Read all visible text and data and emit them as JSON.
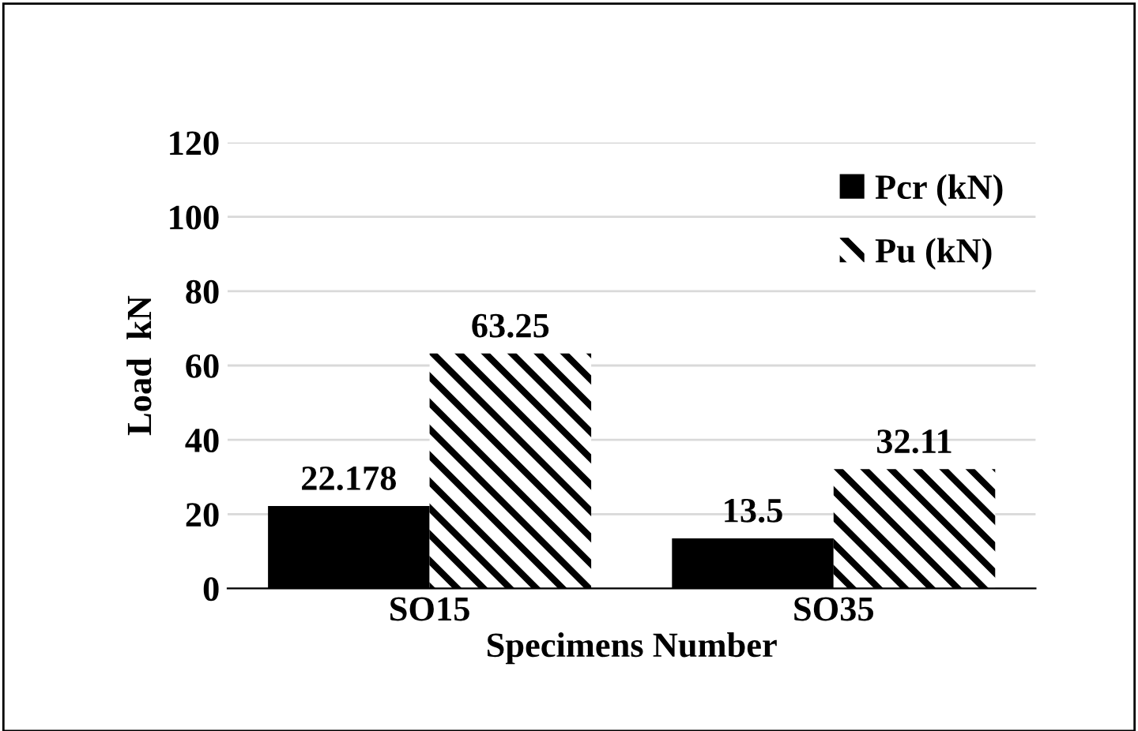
{
  "chart_data": {
    "type": "bar",
    "xlabel": "Specimens Number",
    "ylabel": "Load  kN",
    "categories": [
      "SO15",
      "SO35"
    ],
    "series": [
      {
        "name": "Pcr (kN)",
        "color": "#000000",
        "values": [
          22.178,
          13.5
        ]
      },
      {
        "name": "Pu (kN)",
        "color": "#000000",
        "values": [
          63.25,
          32.11
        ]
      }
    ],
    "ylim": [
      0,
      120
    ],
    "yticks": [
      0,
      20,
      40,
      60,
      80,
      100,
      120
    ],
    "grid": "y",
    "legend": "top right",
    "data_labels": true
  }
}
